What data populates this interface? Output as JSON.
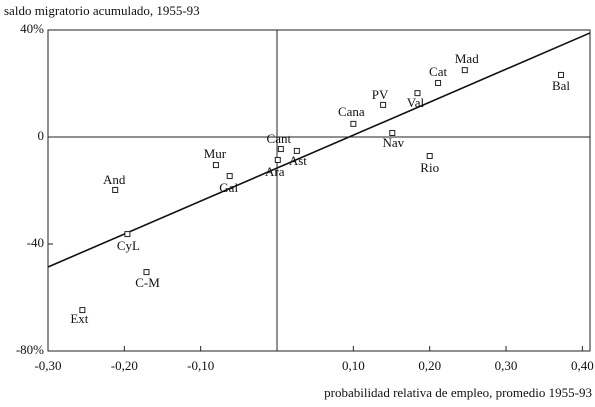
{
  "chart_data": {
    "type": "scatter",
    "title": "saldo migratorio acumulado, 1955-93",
    "x_label": "probabilidad relativa de empleo, promedio 1955-93",
    "labels": [
      "Mad",
      "Cat",
      "Bal",
      "PV",
      "Val",
      "Cana",
      "Nav",
      "Rio",
      "Cant",
      "Ast",
      "Ara",
      "Mur",
      "Gal",
      "And",
      "CyL",
      "C-M",
      "Ext"
    ],
    "x": [
      0.246,
      0.211,
      0.372,
      0.139,
      0.184,
      0.1,
      0.151,
      0.2,
      0.005,
      0.026,
      0.001,
      -0.08,
      -0.062,
      -0.212,
      -0.196,
      -0.171,
      -0.255
    ],
    "values": [
      25.0,
      20.2,
      23.2,
      12,
      16.4,
      4.9,
      1.5,
      -7.1,
      -4.5,
      -5.2,
      -8.6,
      -10.5,
      -14.6,
      -19.8,
      -36.3,
      -50.5,
      -64.7
    ],
    "trend_line": {
      "x": [
        -0.3,
        0.41
      ],
      "y": [
        -48.6,
        38.9
      ]
    },
    "xlim": [
      -0.3,
      0.41
    ],
    "ylim": [
      -80,
      40
    ],
    "xticks": [
      {
        "value": -0.3,
        "label": "-0,30"
      },
      {
        "value": -0.2,
        "label": "-0,20"
      },
      {
        "value": -0.1,
        "label": "-0,10"
      },
      {
        "value": 0.1,
        "label": "0,10"
      },
      {
        "value": 0.2,
        "label": "0,20"
      },
      {
        "value": 0.3,
        "label": "0,30"
      },
      {
        "value": 0.4,
        "label": "0,40"
      }
    ],
    "yticks": [
      {
        "value": 40,
        "label": "40%"
      },
      0,
      -40,
      {
        "value": -80,
        "label": "-80%"
      }
    ],
    "color": "#222"
  }
}
